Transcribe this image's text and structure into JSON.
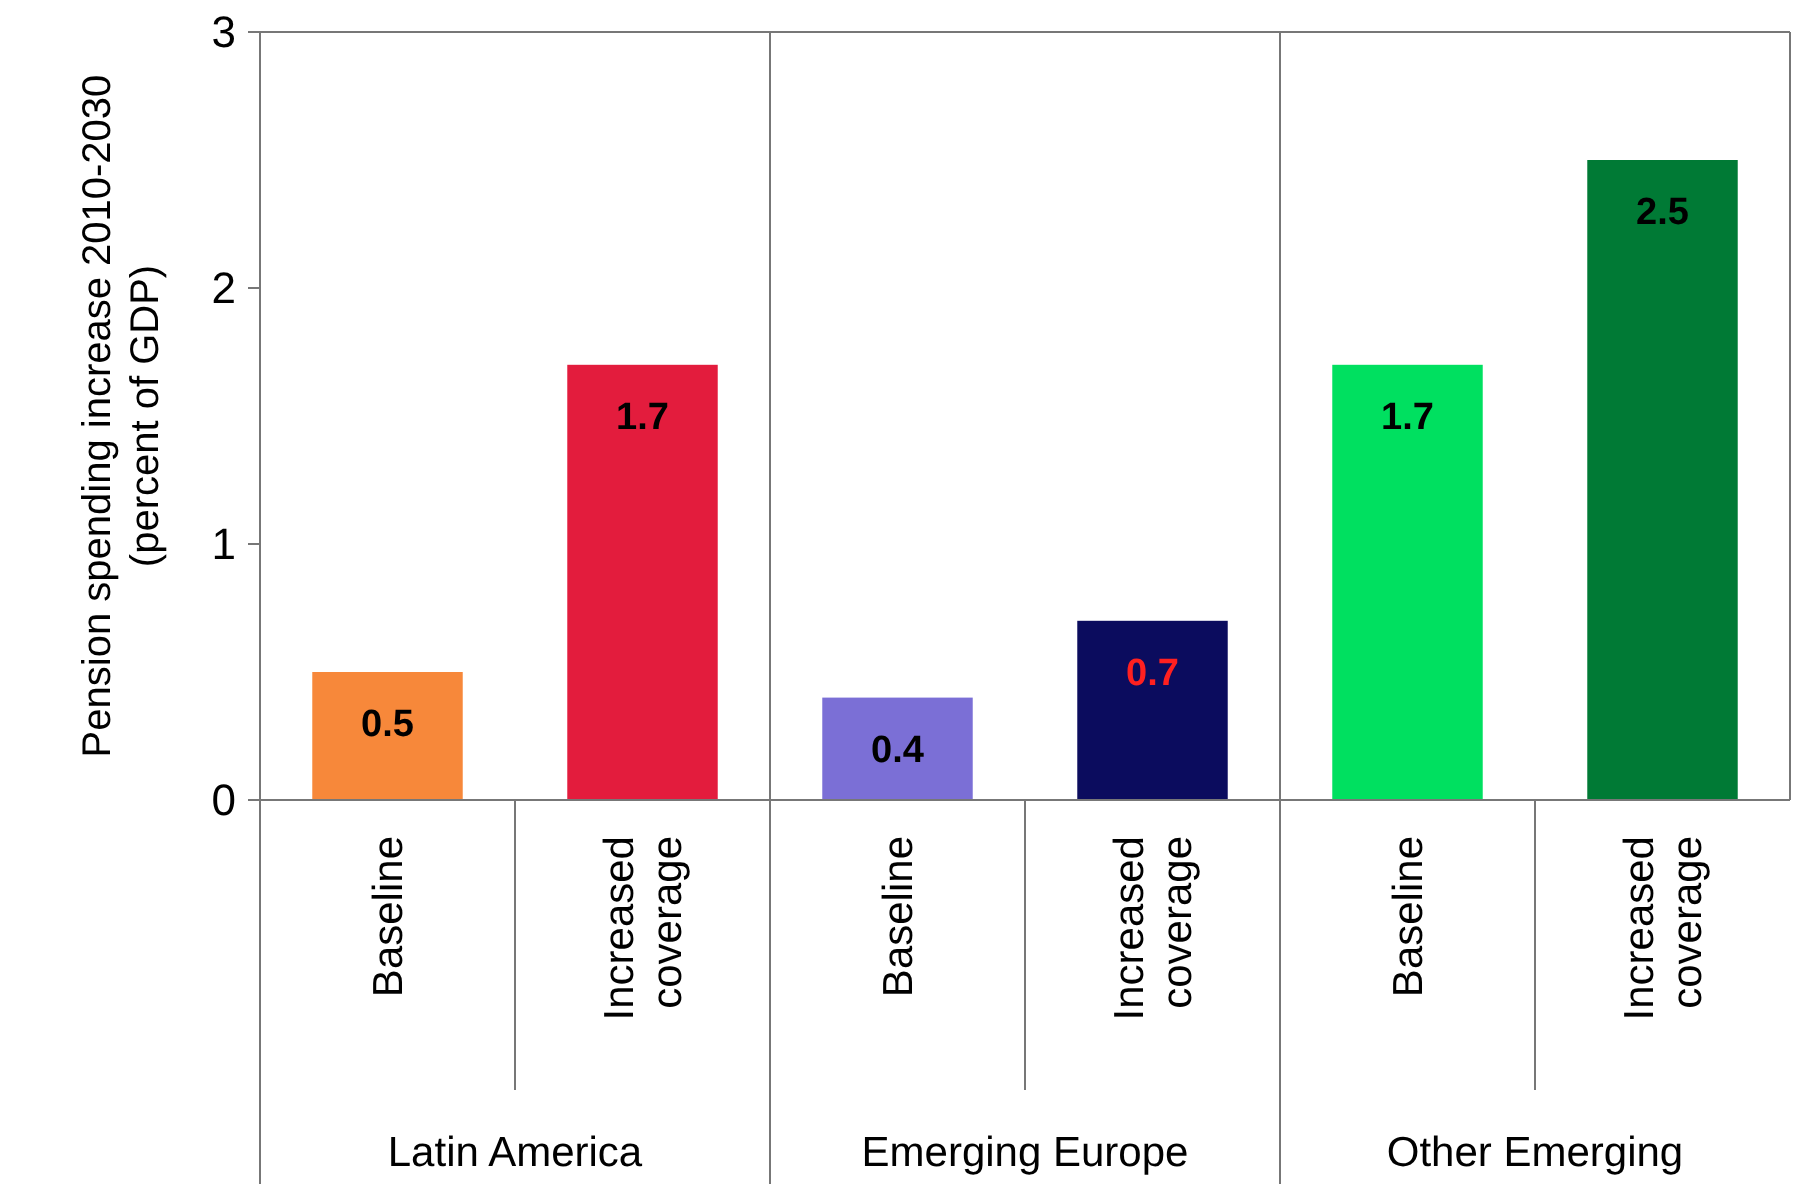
{
  "chart_data": {
    "type": "bar",
    "ylabel": "Pension spending increase  2010-2030\n(percent of GDP)",
    "categories": [
      "Baseline",
      "Increased\ncoverage",
      "Baseline",
      "Increased\ncoverage",
      "Baseline",
      "Increased\ncoverage"
    ],
    "values": [
      0.5,
      1.7,
      0.4,
      0.7,
      1.7,
      2.5
    ],
    "colors": [
      "#f7883a",
      "#e31c3d",
      "#7b6fd6",
      "#0b0c5e",
      "#00e060",
      "#007a35"
    ],
    "ylim": [
      0,
      3
    ],
    "yticks": [
      0,
      1,
      2,
      3
    ],
    "grid": false,
    "data_labels": true,
    "annotations": [
      "Latin America",
      "Emerging Europe",
      "Other Emerging"
    ]
  }
}
